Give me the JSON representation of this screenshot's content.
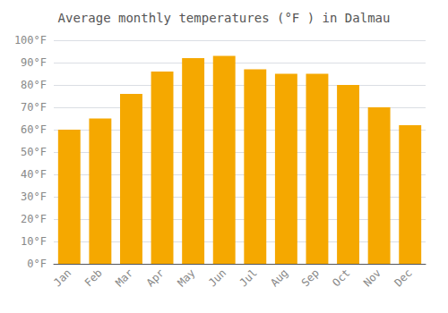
{
  "chart_data": {
    "type": "bar",
    "title": "Average monthly temperatures (°F ) in Dalmau",
    "categories": [
      "Jan",
      "Feb",
      "Mar",
      "Apr",
      "May",
      "Jun",
      "Jul",
      "Aug",
      "Sep",
      "Oct",
      "Nov",
      "Dec"
    ],
    "values": [
      60,
      65,
      76,
      86,
      92,
      93,
      87,
      85,
      85,
      80,
      70,
      62
    ],
    "color": "#F5A800",
    "ylim": [
      0,
      100
    ],
    "yticks": [
      {
        "value": 0,
        "label": "0°F"
      },
      {
        "value": 10,
        "label": "10°F"
      },
      {
        "value": 20,
        "label": "20°F"
      },
      {
        "value": 30,
        "label": "30°F"
      },
      {
        "value": 40,
        "label": "40°F"
      },
      {
        "value": 50,
        "label": "50°F"
      },
      {
        "value": 60,
        "label": "60°F"
      },
      {
        "value": 70,
        "label": "70°F"
      },
      {
        "value": 80,
        "label": "80°F"
      },
      {
        "value": 90,
        "label": "90°F"
      },
      {
        "value": 100,
        "label": "100°F"
      }
    ],
    "grid": true
  }
}
